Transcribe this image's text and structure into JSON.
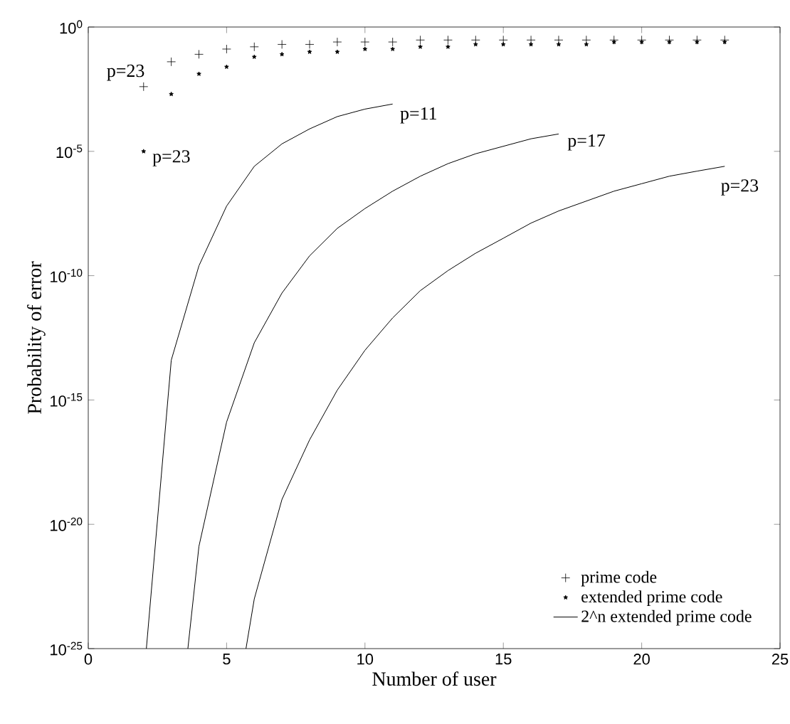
{
  "chart_data": {
    "type": "line",
    "xlabel": "Number of user",
    "ylabel": "Probability of error",
    "log": "y",
    "xlim": [
      0,
      25
    ],
    "ylim": [
      1e-25,
      1
    ],
    "xticks": [
      0,
      5,
      10,
      15,
      20,
      25
    ],
    "yticks": [
      {
        "value": 1e-25,
        "label": "10$^{-25}$"
      },
      {
        "value": 1e-20,
        "label": "10$^{-20}$"
      },
      {
        "value": 1e-15,
        "label": "10$^{-15}$"
      },
      {
        "value": 1e-10,
        "label": "10$^{-10}$"
      },
      {
        "value": 1e-05,
        "label": "10$^{-5}$"
      },
      {
        "value": 1,
        "label": "10$^{0}$"
      }
    ],
    "grid": false,
    "legend": "bottom right",
    "series": [
      {
        "name": "prime code",
        "type": "scatter",
        "marker": "cross",
        "color": "#000000",
        "x": [
          2,
          3,
          4,
          5,
          6,
          7,
          8,
          9,
          10,
          11,
          12,
          13,
          14,
          15,
          16,
          17,
          18,
          19,
          20,
          21,
          22,
          23
        ],
        "values": [
          0.004,
          0.04,
          0.08,
          0.13,
          0.16,
          0.2,
          0.2,
          0.25,
          0.25,
          0.25,
          0.3,
          0.3,
          0.3,
          0.3,
          0.3,
          0.3,
          0.3,
          0.3,
          0.3,
          0.3,
          0.3,
          0.3
        ]
      },
      {
        "name": "extended prime code",
        "type": "scatter",
        "marker": "star",
        "color": "#000000",
        "x": [
          2,
          3,
          4,
          5,
          6,
          7,
          8,
          9,
          10,
          11,
          12,
          13,
          14,
          15,
          16,
          17,
          18,
          19,
          20,
          21,
          22,
          23
        ],
        "values": [
          1e-05,
          0.002,
          0.013,
          0.025,
          0.063,
          0.08,
          0.1,
          0.1,
          0.13,
          0.13,
          0.16,
          0.16,
          0.2,
          0.2,
          0.2,
          0.2,
          0.2,
          0.25,
          0.25,
          0.25,
          0.25,
          0.25
        ]
      },
      {
        "name": "2^n extended prime code",
        "type": "line",
        "color": "#000000",
        "x": [
          2.1,
          3,
          4,
          5,
          6,
          7,
          8,
          9,
          10,
          11
        ],
        "values": [
          1e-25,
          4e-14,
          2.5e-10,
          6.3e-08,
          2.5e-06,
          2e-05,
          8e-05,
          0.00025,
          0.0005,
          0.0008
        ]
      },
      {
        "type": "line",
        "color": "#000000",
        "x": [
          3.6,
          4,
          5,
          6,
          7,
          8,
          9,
          10,
          11,
          12,
          13,
          14,
          15,
          16,
          17
        ],
        "values": [
          1e-25,
          1.3e-21,
          1.3e-16,
          2e-13,
          2e-11,
          6.3e-10,
          8e-09,
          5e-08,
          2.5e-07,
          1e-06,
          3.2e-06,
          8e-06,
          1.6e-05,
          3.2e-05,
          5e-05
        ]
      },
      {
        "type": "line",
        "color": "#000000",
        "x": [
          5.7,
          6,
          7,
          8,
          9,
          10,
          11,
          12,
          13,
          14,
          15,
          16,
          17,
          18,
          19,
          20,
          21,
          22,
          23
        ],
        "values": [
          1e-25,
          1e-23,
          1e-19,
          2.5e-17,
          2.5e-15,
          1e-13,
          2e-12,
          2.5e-11,
          1.6e-10,
          8e-10,
          3.2e-09,
          1.3e-08,
          4e-08,
          1e-07,
          2.5e-07,
          5e-07,
          1e-06,
          1.6e-06,
          2.5e-06
        ]
      }
    ],
    "annotations": [
      {
        "text": "p=23",
        "x": 2,
        "y": 0.004
      },
      {
        "text": "p=23",
        "x": 2,
        "y": 1e-05
      },
      {
        "text": "p=11",
        "x": 11,
        "y": 0.0008
      },
      {
        "text": "p=17",
        "x": 17,
        "y": 5e-05
      },
      {
        "text": "p=23",
        "x": 23,
        "y": 2.5e-06
      }
    ]
  }
}
